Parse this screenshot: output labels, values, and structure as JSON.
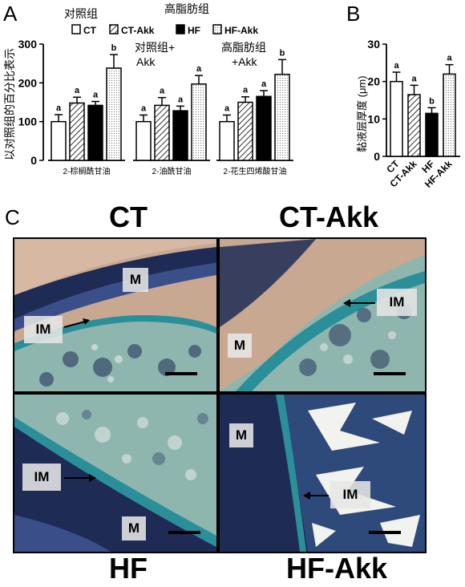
{
  "panel_letters": {
    "a": "A",
    "b": "B",
    "c": "C"
  },
  "panel_a": {
    "ylabel": "以对照组的百分比表示",
    "header_control": "对照组",
    "header_hfd": "高脂肪组",
    "sub_control_akk": [
      "对照组+",
      "Akk"
    ],
    "sub_hfd_akk": [
      "高脂肪组",
      "+Akk"
    ],
    "legend": [
      "CT",
      "CT-Akk",
      "HF",
      "HF-Akk"
    ]
  },
  "panel_b": {
    "ylabel": "黏液层厚度 (μm)"
  },
  "chart_data": [
    {
      "type": "bar",
      "panel": "A",
      "ylim": [
        0,
        300
      ],
      "yticks": [
        "0",
        "100",
        "200",
        "300"
      ],
      "groups": [
        "2-棕榈酰甘油",
        "2-油酰甘油",
        "2-花生四烯酸甘油"
      ],
      "series": [
        {
          "name": "CT",
          "values": [
            100,
            100,
            100
          ],
          "errors": [
            18,
            17,
            17
          ],
          "labels": [
            "a",
            "a",
            "a"
          ]
        },
        {
          "name": "CT-Akk",
          "values": [
            148,
            142,
            150
          ],
          "errors": [
            15,
            20,
            14
          ],
          "labels": [
            "a",
            "a",
            "a"
          ]
        },
        {
          "name": "HF",
          "values": [
            142,
            128,
            165
          ],
          "errors": [
            10,
            12,
            15
          ],
          "labels": [
            "a",
            "a",
            "a"
          ]
        },
        {
          "name": "HF-Akk",
          "values": [
            238,
            197,
            222
          ],
          "errors": [
            35,
            22,
            38
          ],
          "labels": [
            "b",
            "a",
            "b"
          ]
        }
      ]
    },
    {
      "type": "bar",
      "panel": "B",
      "ylim": [
        0,
        30
      ],
      "yticks": [
        "0",
        "10",
        "20",
        "30"
      ],
      "categories": [
        "CT",
        "CT-Akk",
        "HF",
        "HF-Akk"
      ],
      "values": [
        20.0,
        16.5,
        11.5,
        22.0
      ],
      "errors": [
        2.5,
        2.5,
        1.5,
        2.5
      ],
      "labels": [
        "a",
        "a",
        "b",
        "a"
      ]
    }
  ],
  "panel_c": {
    "titles": {
      "ct": "CT",
      "ct_akk": "CT-Akk",
      "hf": "HF",
      "hf_akk": "HF-Akk"
    },
    "labels": {
      "m": "M",
      "im": "IM"
    }
  },
  "colors": {
    "hist_bg": "#c9a892",
    "tissue_dark": "#1d2b55",
    "tissue_teal": "#2b8f9a",
    "tissue_light": "#8fb6ae"
  }
}
